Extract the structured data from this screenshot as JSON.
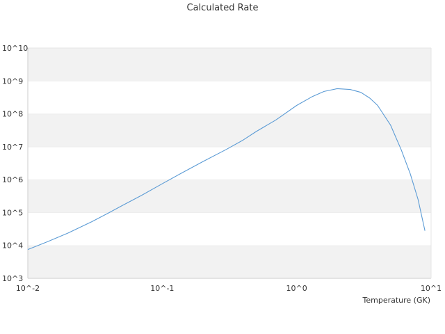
{
  "chart_data": {
    "type": "line",
    "title": "Calculated Rate",
    "xlabel": "Temperature (GK)",
    "ylabel": "",
    "x_scale": "log",
    "y_scale": "log",
    "xlim": [
      0.01,
      10
    ],
    "ylim": [
      1000,
      10000000000
    ],
    "x_ticks": [
      {
        "value": 0.01,
        "label": "10^-2"
      },
      {
        "value": 0.1,
        "label": "10^-1"
      },
      {
        "value": 1,
        "label": "10^0"
      },
      {
        "value": 10,
        "label": "10^1"
      }
    ],
    "y_ticks": [
      {
        "value": 1000,
        "label": "10^3"
      },
      {
        "value": 10000,
        "label": "10^4"
      },
      {
        "value": 100000,
        "label": "10^5"
      },
      {
        "value": 1000000,
        "label": "10^6"
      },
      {
        "value": 10000000,
        "label": "10^7"
      },
      {
        "value": 100000000,
        "label": "10^8"
      },
      {
        "value": 1000000000,
        "label": "10^9"
      },
      {
        "value": 10000000000,
        "label": "10^10"
      }
    ],
    "grid": "alternating horizontal bands",
    "colors": {
      "line": "#5b9bd5",
      "band": "#f2f2f2",
      "axis": "#cccccc"
    },
    "series": [
      {
        "x": [
          0.01,
          0.014,
          0.02,
          0.03,
          0.04,
          0.05,
          0.07,
          0.1,
          0.14,
          0.2,
          0.3,
          0.4,
          0.5,
          0.7,
          1.0,
          1.3,
          1.6,
          2.0,
          2.5,
          3.0,
          3.5,
          4.0,
          5.0,
          6.0,
          7.0,
          8.0,
          9.0
        ],
        "y": [
          7500.0,
          13000.0,
          24000.0,
          53000.0,
          98000.0,
          160000.0,
          330000.0,
          750000.0,
          1600000.0,
          3500000.0,
          8300000.0,
          16000000.0,
          29000000.0,
          65000000.0,
          180000000.0,
          330000000.0,
          480000000.0,
          580000000.0,
          550000000.0,
          450000000.0,
          300000000.0,
          180000000.0,
          45000000.0,
          8000000.0,
          1500000.0,
          250000.0,
          28000.0
        ]
      }
    ]
  }
}
